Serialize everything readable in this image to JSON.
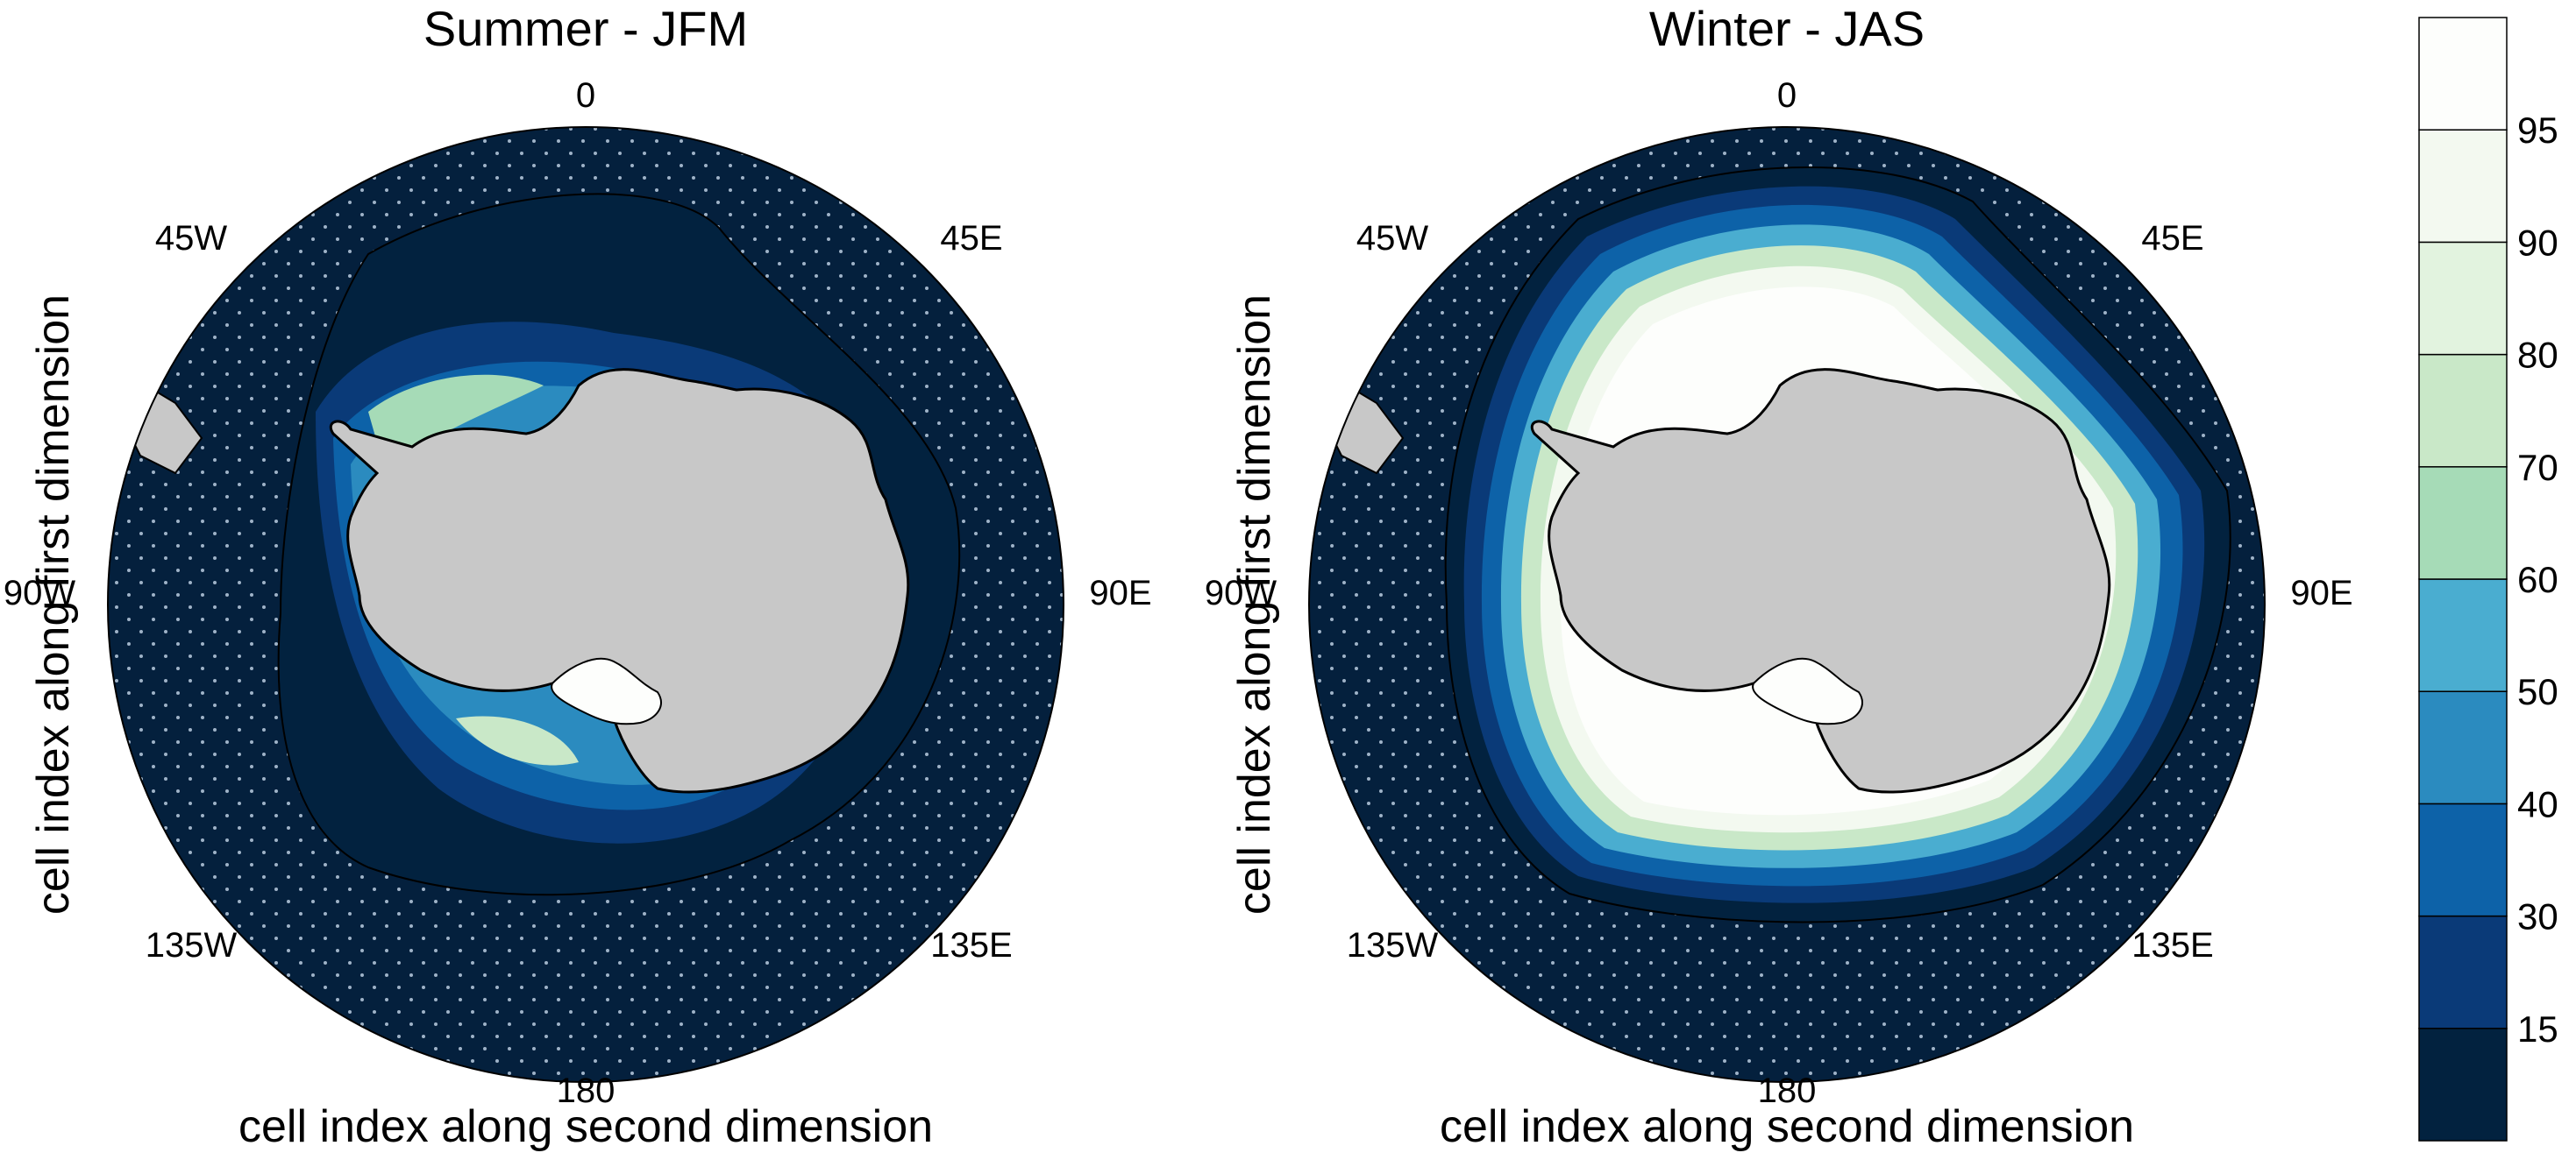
{
  "panels": [
    {
      "title": "Summer - JFM",
      "xlabel": "cell index along second dimension",
      "ylabel": "cell index along first dimension",
      "lon_labels": {
        "top": "0",
        "upper_right": "45E",
        "right": "90E",
        "lower_right": "135E",
        "bottom": "180",
        "lower_left": "135W",
        "left": "90W",
        "upper_left": "45W"
      }
    },
    {
      "title": "Winter - JAS",
      "xlabel": "cell index along second dimension",
      "ylabel": "cell index along first dimension",
      "lon_labels": {
        "top": "0",
        "upper_right": "45E",
        "right": "90E",
        "lower_right": "135E",
        "bottom": "180",
        "lower_left": "135W",
        "left": "90W",
        "upper_left": "45W"
      }
    }
  ],
  "colorbar": {
    "labels": [
      "15",
      "30",
      "40",
      "50",
      "60",
      "70",
      "80",
      "90",
      "95"
    ],
    "colors": [
      "#02223f",
      "#0a3a78",
      "#0d62a8",
      "#2b8bbf",
      "#4aadd0",
      "#a6dbb7",
      "#c9e8c8",
      "#e2f3df",
      "#f3f9f0",
      "#fdfefc"
    ]
  },
  "colors": {
    "ocean": "#04203d",
    "land": "#c8c8c8",
    "stipple": "#9fb3c8",
    "ice_high": "#fdfefc"
  }
}
